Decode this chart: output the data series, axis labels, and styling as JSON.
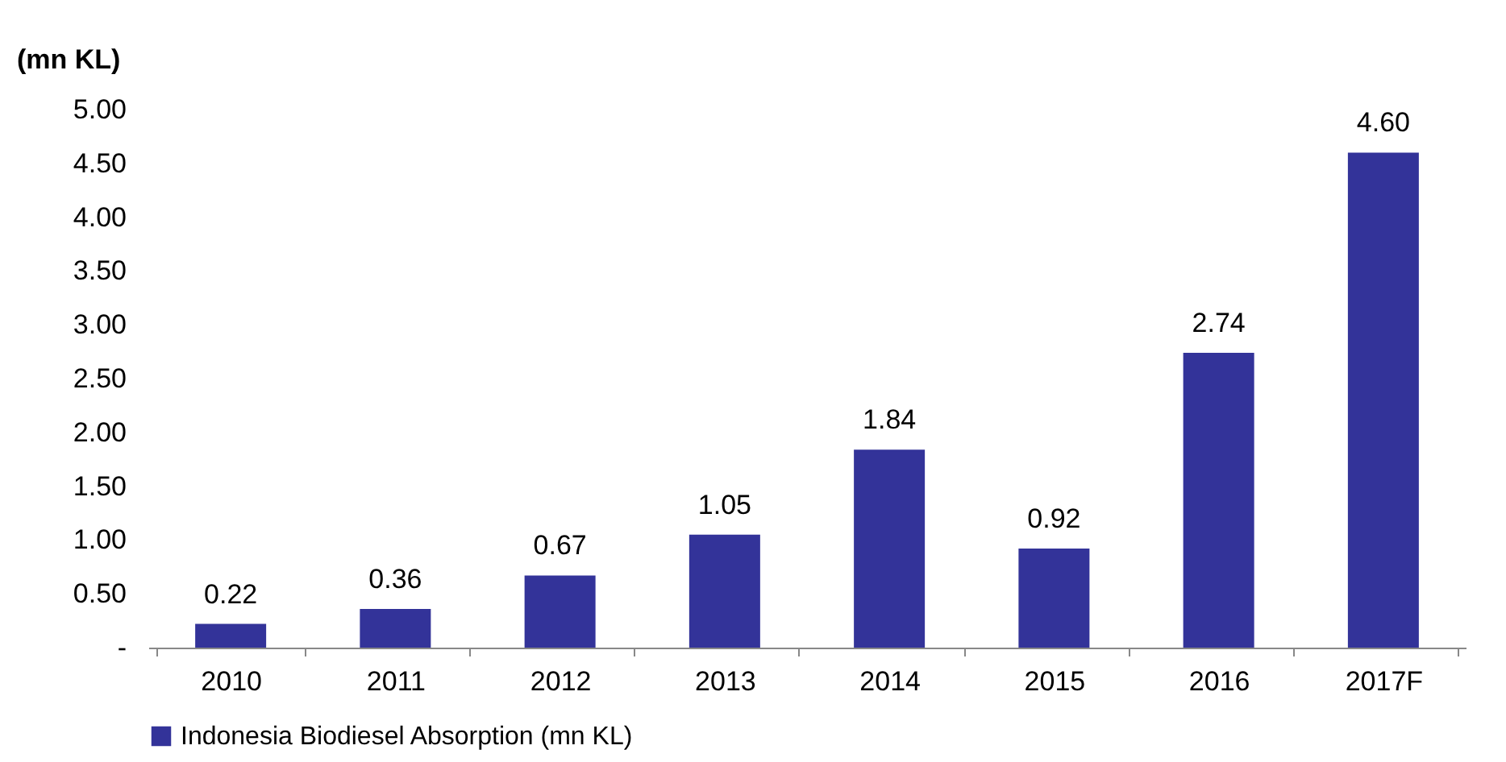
{
  "chart_data": {
    "type": "bar",
    "ylabel": "(mn KL)",
    "categories": [
      "2010",
      "2011",
      "2012",
      "2013",
      "2014",
      "2015",
      "2016",
      "2017F"
    ],
    "series": [
      {
        "name": "Indonesia Biodiesel Absorption (mn KL)",
        "color": "#333399",
        "values": [
          0.22,
          0.36,
          0.67,
          1.05,
          1.84,
          0.92,
          2.74,
          4.6
        ]
      }
    ],
    "value_labels": [
      "0.22",
      "0.36",
      "0.67",
      "1.05",
      "1.84",
      "0.92",
      "2.74",
      "4.60"
    ],
    "ylim": [
      0,
      5
    ],
    "yticks": [
      {
        "value": 0,
        "label": "-"
      },
      {
        "value": 0.5,
        "label": "0.50"
      },
      {
        "value": 1,
        "label": "1.00"
      },
      {
        "value": 1.5,
        "label": "1.50"
      },
      {
        "value": 2,
        "label": "2.00"
      },
      {
        "value": 2.5,
        "label": "2.50"
      },
      {
        "value": 3,
        "label": "3.00"
      },
      {
        "value": 3.5,
        "label": "3.50"
      },
      {
        "value": 4,
        "label": "4.00"
      },
      {
        "value": 4.5,
        "label": "4.50"
      },
      {
        "value": 5,
        "label": "5.00"
      }
    ],
    "grid": false,
    "legend": "bottom"
  }
}
